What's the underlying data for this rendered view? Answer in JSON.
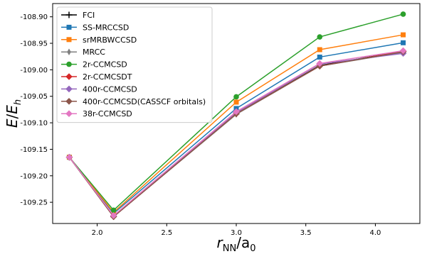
{
  "chart_data": {
    "type": "line",
    "xlabel_main": "r",
    "xlabel_sub": "NN",
    "xlabel_rest": "/a",
    "xlabel_sub2": "0",
    "ylabel_main": "E",
    "ylabel_sep": "/",
    "ylabel_rest": "E",
    "ylabel_sub": "h",
    "xlim": [
      1.68,
      4.32
    ],
    "ylim": [
      -109.29,
      -108.875
    ],
    "xticks": [
      2.0,
      2.5,
      3.0,
      3.5,
      4.0
    ],
    "xtick_labels": [
      "2.0",
      "2.5",
      "3.0",
      "3.5",
      "4.0"
    ],
    "yticks": [
      -109.25,
      -109.2,
      -109.15,
      -109.1,
      -109.05,
      -109.0,
      -108.95,
      -108.9
    ],
    "ytick_labels": [
      "-109.25",
      "-109.20",
      "-109.15",
      "-109.10",
      "-109.05",
      "-109.00",
      "-108.95",
      "-108.90"
    ],
    "grid": false,
    "legend_position": "top-left",
    "series": [
      {
        "name": "FCI",
        "color": "#000000",
        "marker": "plus",
        "x": [
          1.8,
          2.118,
          3.0,
          3.6,
          4.2
        ],
        "y": [
          -109.165,
          -109.277,
          -109.083,
          -108.992,
          -108.965
        ]
      },
      {
        "name": "SS-MRCCSD",
        "color": "#1f77b4",
        "marker": "square",
        "x": [
          1.8,
          2.118,
          3.0,
          3.6,
          4.2
        ],
        "y": [
          -109.165,
          -109.271,
          -109.073,
          -108.976,
          -108.949
        ]
      },
      {
        "name": "srMRBWCCSD",
        "color": "#ff7f0e",
        "marker": "square",
        "x": [
          1.8,
          2.118,
          3.0,
          3.6,
          4.2
        ],
        "y": [
          -109.165,
          -109.269,
          -109.061,
          -108.962,
          -108.934
        ]
      },
      {
        "name": "MRCC",
        "color": "#7f7f7f",
        "marker": "thin-diamond",
        "x": [
          1.8,
          2.118,
          3.0,
          3.6,
          4.2
        ],
        "y": [
          -109.165,
          -109.277,
          -109.084,
          -108.993,
          -108.967
        ]
      },
      {
        "name": "2r-CCMCSD",
        "color": "#2ca02c",
        "marker": "circle",
        "x": [
          1.8,
          2.118,
          3.0,
          3.6,
          4.2
        ],
        "y": [
          -109.165,
          -109.265,
          -109.051,
          -108.938,
          -108.895
        ]
      },
      {
        "name": "2r-CCMCSDT",
        "color": "#d62728",
        "marker": "diamond",
        "x": [
          1.8,
          2.118,
          3.0,
          3.6,
          4.2
        ],
        "y": [
          -109.165,
          -109.277,
          -109.083,
          -108.993,
          -108.965
        ]
      },
      {
        "name": "400r-CCMCSD",
        "color": "#9467bd",
        "marker": "diamond",
        "x": [
          1.8,
          2.118,
          3.0,
          3.6,
          4.2
        ],
        "y": [
          -109.165,
          -109.276,
          -109.081,
          -108.989,
          -108.969
        ]
      },
      {
        "name": "400r-CCMCSD(CASSCF orbitals)",
        "color": "#8c564b",
        "marker": "diamond",
        "x": [
          1.8,
          2.118,
          3.0,
          3.6,
          4.2
        ],
        "y": [
          -109.165,
          -109.277,
          -109.083,
          -108.993,
          -108.966
        ]
      },
      {
        "name": "38r-CCMCSD",
        "color": "#e377c2",
        "marker": "diamond",
        "x": [
          1.8,
          2.118,
          3.0,
          3.6,
          4.2
        ],
        "y": [
          -109.165,
          -109.275,
          -109.079,
          -108.988,
          -108.964
        ]
      }
    ]
  }
}
